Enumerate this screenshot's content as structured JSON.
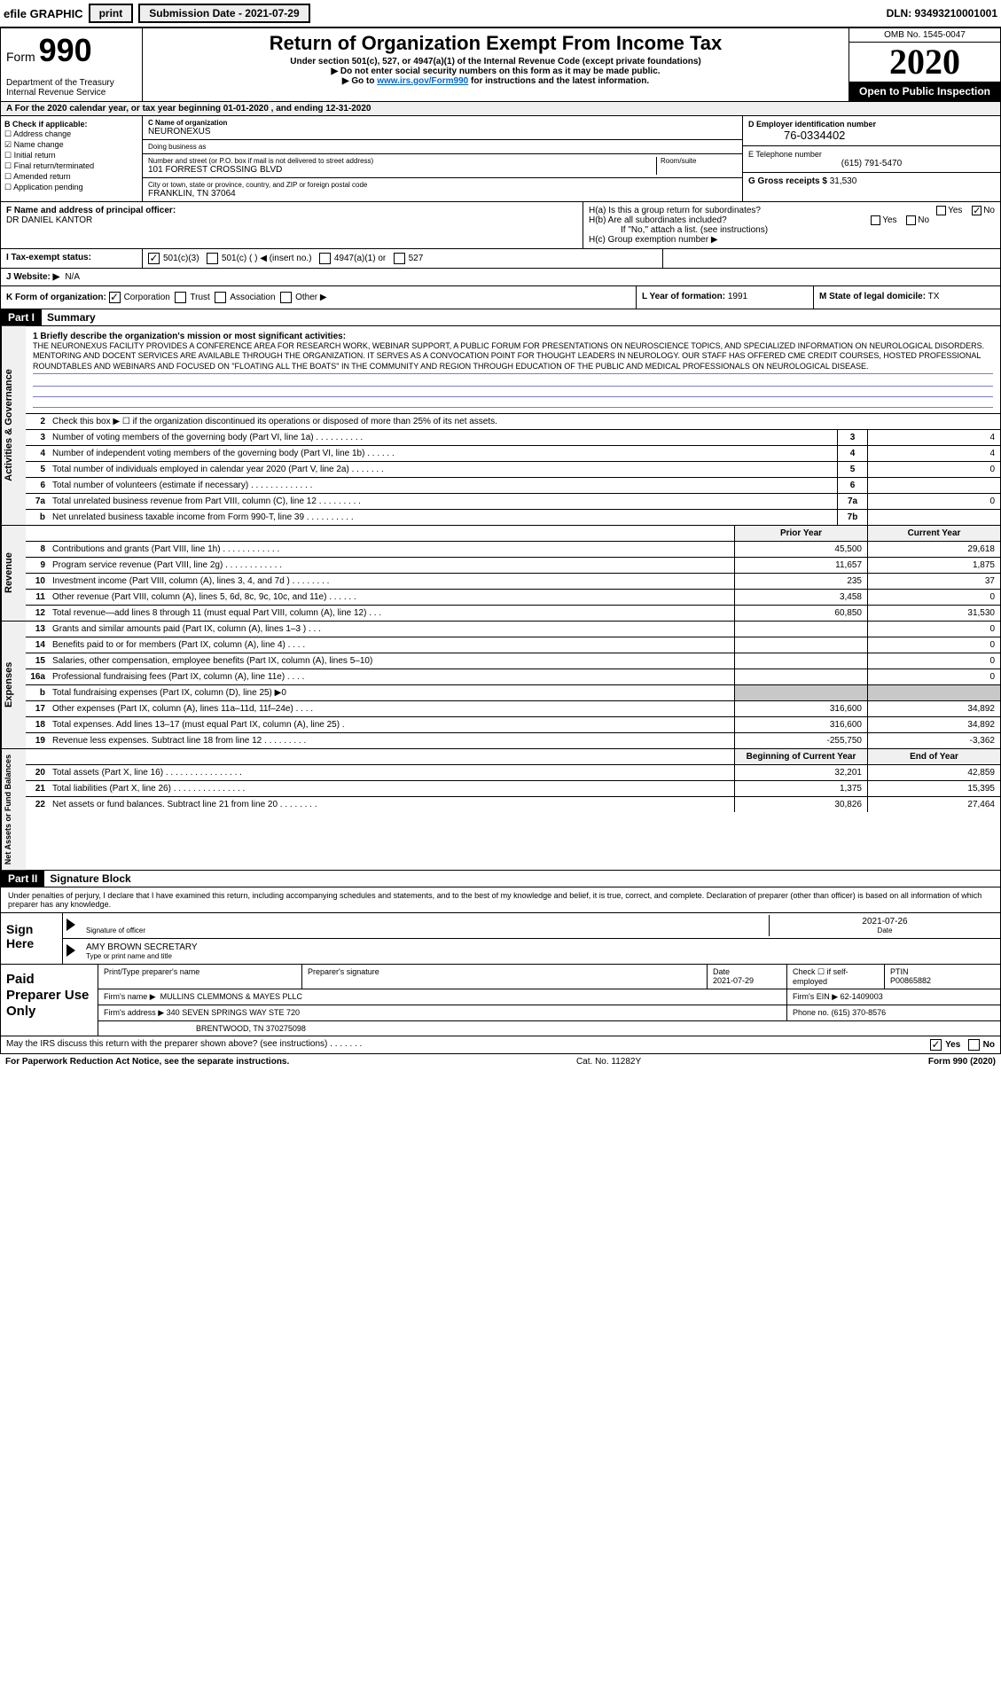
{
  "topbar": {
    "efile": "efile GRAPHIC",
    "print": "print",
    "sub_label": "Submission Date - 2021-07-29",
    "dln": "DLN: 93493210001001"
  },
  "header": {
    "form_word": "Form",
    "form_num": "990",
    "title": "Return of Organization Exempt From Income Tax",
    "sub1": "Under section 501(c), 527, or 4947(a)(1) of the Internal Revenue Code (except private foundations)",
    "sub2": "▶ Do not enter social security numbers on this form as it may be made public.",
    "sub3_pre": "▶ Go to ",
    "sub3_link": "www.irs.gov/Form990",
    "sub3_post": " for instructions and the latest information.",
    "dept": "Department of the Treasury\nInternal Revenue Service",
    "omb": "OMB No. 1545-0047",
    "year": "2020",
    "open": "Open to Public Inspection"
  },
  "period": "A For the 2020 calendar year, or tax year beginning 01-01-2020    , and ending 12-31-2020",
  "b": {
    "label": "B Check if applicable:",
    "items": [
      {
        "t": "Address change",
        "c": false
      },
      {
        "t": "Name change",
        "c": true
      },
      {
        "t": "Initial return",
        "c": false
      },
      {
        "t": "Final return/terminated",
        "c": false
      },
      {
        "t": "Amended return",
        "c": false
      },
      {
        "t": "Application pending",
        "c": false
      }
    ]
  },
  "c": {
    "name_lbl": "C Name of organization",
    "name": "NEURONEXUS",
    "dba_lbl": "Doing business as",
    "dba": "",
    "addr_lbl": "Number and street (or P.O. box if mail is not delivered to street address)",
    "addr": "101 FORREST CROSSING BLVD",
    "room_lbl": "Room/suite",
    "city_lbl": "City or town, state or province, country, and ZIP or foreign postal code",
    "city": "FRANKLIN, TN  37064"
  },
  "d": {
    "lbl": "D Employer identification number",
    "ein": "76-0334402",
    "e_lbl": "E Telephone number",
    "phone": "(615) 791-5470",
    "g_lbl": "G Gross receipts $",
    "g_val": "31,530"
  },
  "f": {
    "lbl": "F  Name and address of principal officer:",
    "val": "DR DANIEL KANTOR"
  },
  "h": {
    "a_lbl": "H(a)  Is this a group return for subordinates?",
    "b_lbl": "H(b)  Are all subordinates included?",
    "b_note": "If \"No,\" attach a list. (see instructions)",
    "c_lbl": "H(c)  Group exemption number ▶",
    "yes": "Yes",
    "no": "No"
  },
  "i": {
    "lbl": "I     Tax-exempt status:",
    "opts": [
      "501(c)(3)",
      "501(c) (  ) ◀ (insert no.)",
      "4947(a)(1) or",
      "527"
    ]
  },
  "j": {
    "lbl": "J    Website: ▶",
    "val": "N/A"
  },
  "k": {
    "lbl": "K Form of organization:",
    "opts": [
      "Corporation",
      "Trust",
      "Association",
      "Other ▶"
    ]
  },
  "l": {
    "lbl": "L Year of formation:",
    "val": "1991"
  },
  "m": {
    "lbl": "M State of legal domicile:",
    "val": "TX"
  },
  "part1": {
    "hdr": "Part I",
    "title": "Summary"
  },
  "mission_lbl": "1   Briefly describe the organization's mission or most significant activities:",
  "mission": "THE NEURONEXUS FACILITY PROVIDES A CONFERENCE AREA FOR RESEARCH WORK, WEBINAR SUPPORT, A PUBLIC FORUM FOR PRESENTATIONS ON NEUROSCIENCE TOPICS, AND SPECIALIZED INFORMATION ON NEUROLOGICAL DISORDERS. MENTORING AND DOCENT SERVICES ARE AVAILABLE THROUGH THE ORGANIZATION. IT SERVES AS A CONVOCATION POINT FOR THOUGHT LEADERS IN NEUROLOGY. OUR STAFF HAS OFFERED CME CREDIT COURSES, HOSTED PROFESSIONAL ROUNDTABLES AND WEBINARS AND FOCUSED ON \"FLOATING ALL THE BOATS\" IN THE COMMUNITY AND REGION THROUGH EDUCATION OF THE PUBLIC AND MEDICAL PROFESSIONALS ON NEUROLOGICAL DISEASE.",
  "gov_rows": [
    {
      "n": "2",
      "d": "Check this box ▶ ☐  if the organization discontinued its operations or disposed of more than 25% of its net assets.",
      "box": "",
      "v": ""
    },
    {
      "n": "3",
      "d": "Number of voting members of the governing body (Part VI, line 1a)  .    .    .    .    .    .    .    .    .    .",
      "box": "3",
      "v": "4"
    },
    {
      "n": "4",
      "d": "Number of independent voting members of the governing body (Part VI, line 1b)  .    .    .    .    .    .",
      "box": "4",
      "v": "4"
    },
    {
      "n": "5",
      "d": "Total number of individuals employed in calendar year 2020 (Part V, line 2a)  .    .    .    .    .    .    .",
      "box": "5",
      "v": "0"
    },
    {
      "n": "6",
      "d": "Total number of volunteers (estimate if necessary)  .    .    .    .    .    .    .    .    .    .    .    .    .",
      "box": "6",
      "v": ""
    },
    {
      "n": "7a",
      "d": "Total unrelated business revenue from Part VIII, column (C), line 12  .    .    .    .    .    .    .    .    .",
      "box": "7a",
      "v": "0"
    },
    {
      "n": "b",
      "d": "Net unrelated business taxable income from Form 990-T, line 39  .    .    .    .    .    .    .    .    .    .",
      "box": "7b",
      "v": ""
    }
  ],
  "col_hdrs": {
    "py": "Prior Year",
    "cy": "Current Year"
  },
  "rev_rows": [
    {
      "n": "8",
      "d": "Contributions and grants (Part VIII, line 1h)  .    .    .    .    .    .    .    .    .    .    .    .",
      "py": "45,500",
      "cy": "29,618"
    },
    {
      "n": "9",
      "d": "Program service revenue (Part VIII, line 2g)  .    .    .    .    .    .    .    .    .    .    .    .",
      "py": "11,657",
      "cy": "1,875"
    },
    {
      "n": "10",
      "d": "Investment income (Part VIII, column (A), lines 3, 4, and 7d )  .    .    .    .    .    .    .    .",
      "py": "235",
      "cy": "37"
    },
    {
      "n": "11",
      "d": "Other revenue (Part VIII, column (A), lines 5, 6d, 8c, 9c, 10c, and 11e)  .    .    .    .    .    .",
      "py": "3,458",
      "cy": "0"
    },
    {
      "n": "12",
      "d": "Total revenue—add lines 8 through 11 (must equal Part VIII, column (A), line 12)  .    .    .",
      "py": "60,850",
      "cy": "31,530"
    }
  ],
  "exp_rows": [
    {
      "n": "13",
      "d": "Grants and similar amounts paid (Part IX, column (A), lines 1–3 )  .    .    .",
      "py": "",
      "cy": "0"
    },
    {
      "n": "14",
      "d": "Benefits paid to or for members (Part IX, column (A), line 4)  .    .    .    .",
      "py": "",
      "cy": "0"
    },
    {
      "n": "15",
      "d": "Salaries, other compensation, employee benefits (Part IX, column (A), lines 5–10)",
      "py": "",
      "cy": "0"
    },
    {
      "n": "16a",
      "d": "Professional fundraising fees (Part IX, column (A), line 11e)  .    .    .    .",
      "py": "",
      "cy": "0"
    },
    {
      "n": "b",
      "d": "Total fundraising expenses (Part IX, column (D), line 25) ▶0",
      "py": "shade",
      "cy": "shade"
    },
    {
      "n": "17",
      "d": "Other expenses (Part IX, column (A), lines 11a–11d, 11f–24e)  .    .    .    .",
      "py": "316,600",
      "cy": "34,892"
    },
    {
      "n": "18",
      "d": "Total expenses. Add lines 13–17 (must equal Part IX, column (A), line 25)  .",
      "py": "316,600",
      "cy": "34,892"
    },
    {
      "n": "19",
      "d": "Revenue less expenses. Subtract line 18 from line 12  .    .    .    .    .    .    .    .    .",
      "py": "-255,750",
      "cy": "-3,362"
    }
  ],
  "na_hdrs": {
    "b": "Beginning of Current Year",
    "e": "End of Year"
  },
  "na_rows": [
    {
      "n": "20",
      "d": "Total assets (Part X, line 16)  .    .    .    .    .    .    .    .    .    .    .    .    .    .    .    .",
      "b": "32,201",
      "e": "42,859"
    },
    {
      "n": "21",
      "d": "Total liabilities (Part X, line 26)  .    .    .    .    .    .    .    .    .    .    .    .    .    .    .",
      "b": "1,375",
      "e": "15,395"
    },
    {
      "n": "22",
      "d": "Net assets or fund balances. Subtract line 21 from line 20  .    .    .    .    .    .    .    .",
      "b": "30,826",
      "e": "27,464"
    }
  ],
  "side_labels": {
    "gov": "Activities & Governance",
    "rev": "Revenue",
    "exp": "Expenses",
    "na": "Net Assets or Fund Balances"
  },
  "part2": {
    "hdr": "Part II",
    "title": "Signature Block"
  },
  "perjury": "Under penalties of perjury, I declare that I have examined this return, including accompanying schedules and statements, and to the best of my knowledge and belief, it is true, correct, and complete. Declaration of preparer (other than officer) is based on all information of which preparer has any knowledge.",
  "sign": {
    "here": "Sign Here",
    "sig_lbl": "Signature of officer",
    "date_lbl": "Date",
    "date": "2021-07-26",
    "name": "AMY BROWN  SECRETARY",
    "name_lbl": "Type or print name and title"
  },
  "prep": {
    "title": "Paid Preparer Use Only",
    "h1": "Print/Type preparer's name",
    "h2": "Preparer's signature",
    "h3": "Date",
    "h3v": "2021-07-29",
    "h4": "Check ☐ if self-employed",
    "h5": "PTIN",
    "h5v": "P00865882",
    "firm_lbl": "Firm's name    ▶",
    "firm": "MULLINS CLEMMONS & MAYES PLLC",
    "ein_lbl": "Firm's EIN ▶",
    "ein": "62-1409003",
    "addr_lbl": "Firm's address ▶",
    "addr1": "340 SEVEN SPRINGS WAY STE 720",
    "addr2": "BRENTWOOD, TN  370275098",
    "phone_lbl": "Phone no.",
    "phone": "(615) 370-8576"
  },
  "discuss": {
    "q": "May the IRS discuss this return with the preparer shown above? (see instructions)  .    .    .    .    .    .    .",
    "yes": "Yes",
    "no": "No"
  },
  "bottom": {
    "pra": "For Paperwork Reduction Act Notice, see the separate instructions.",
    "cat": "Cat. No. 11282Y",
    "form": "Form 990 (2020)"
  }
}
